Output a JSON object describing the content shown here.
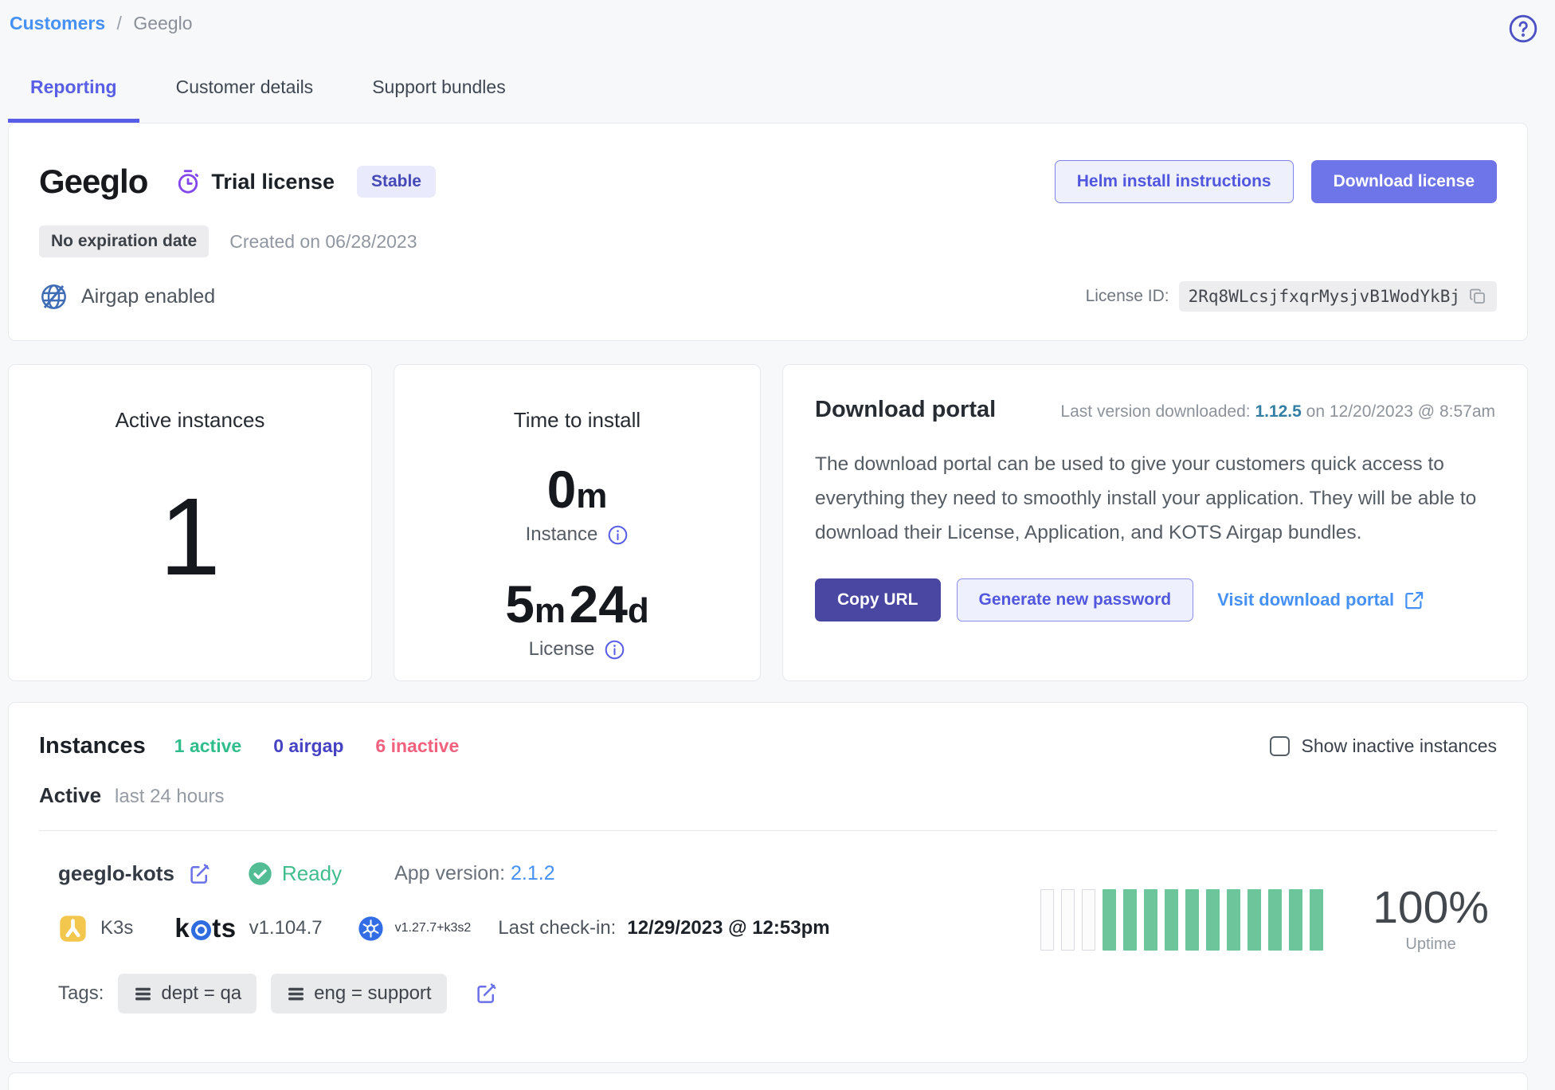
{
  "breadcrumb": {
    "parent": "Customers",
    "separator": "/",
    "current": "Geeglo"
  },
  "tabs": [
    {
      "label": "Reporting"
    },
    {
      "label": "Customer details"
    },
    {
      "label": "Support bundles"
    }
  ],
  "header": {
    "title": "Geeglo",
    "license_type": "Trial license",
    "channel_badge": "Stable",
    "expiration_badge": "No expiration date",
    "created": "Created on 06/28/2023",
    "airgap_label": "Airgap enabled",
    "helm_button": "Helm install instructions",
    "download_button": "Download license",
    "license_id_label": "License ID:",
    "license_id": "2Rq8WLcsjfxqrMysjvB1WodYkBj"
  },
  "metrics": {
    "active_instances": {
      "title": "Active instances",
      "value": "1"
    },
    "time_to_install": {
      "title": "Time to install",
      "instance_value": "0",
      "instance_unit": "m",
      "instance_label": "Instance",
      "license_value1": "5",
      "license_unit1": "m",
      "license_value2": "24",
      "license_unit2": "d",
      "license_label": "License"
    }
  },
  "download_portal": {
    "title": "Download portal",
    "last_version_label": "Last version downloaded:",
    "last_version": "1.12.5",
    "last_version_date": "on 12/20/2023 @ 8:57am",
    "description": "The download portal can be used to give your customers quick access to everything they need to smoothly install your application. They will be able to download their License, Application, and KOTS Airgap bundles.",
    "copy_url_button": "Copy URL",
    "generate_password_button": "Generate new password",
    "visit_portal_link": "Visit download portal"
  },
  "instances": {
    "title": "Instances",
    "counts": [
      {
        "label": "1 active"
      },
      {
        "label": "0 airgap"
      },
      {
        "label": "6 inactive"
      }
    ],
    "show_inactive_label": "Show inactive instances",
    "section_label": "Active",
    "section_sublabel": "last 24 hours",
    "instance": {
      "name": "geeglo-kots",
      "status": "Ready",
      "app_version_label": "App version:",
      "app_version": "2.1.2",
      "distro": "K3s",
      "kots_word_pre": "k",
      "kots_word_post": "ts",
      "kots_version": "v1.104.7",
      "k8s_version": "v1.27.7+k3s2",
      "last_checkin_label": "Last check-in:",
      "last_checkin": "12/29/2023 @ 12:53pm",
      "tags_label": "Tags:",
      "tags": [
        "dept = qa",
        "eng = support"
      ],
      "uptime_value": "100%",
      "uptime_label": "Uptime",
      "uptime_bars": {
        "empty": 3,
        "filled": 11
      }
    }
  },
  "colors": {
    "accent_indigo": "#585ee5",
    "button_purple": "#6e75e8",
    "button_dark_indigo": "#4a47a3",
    "link_blue": "#4591f5",
    "version_teal": "#337fa4",
    "status_green": "#41bd8e",
    "airgap_indigo": "#4642c4",
    "inactive_red": "#f1617e",
    "uptime_green": "#6cc59b",
    "k3s_yellow": "#f3c74e",
    "kubernetes_blue": "#326de6"
  }
}
